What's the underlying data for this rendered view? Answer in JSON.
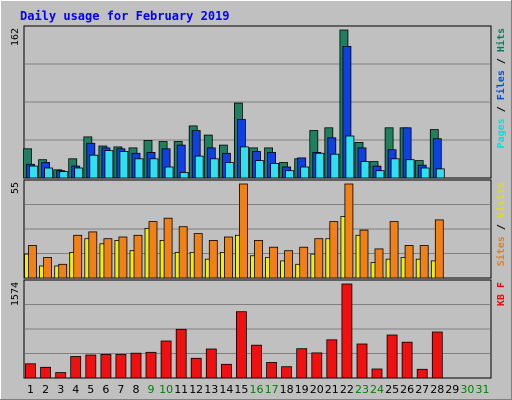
{
  "chart_data": {
    "type": "bar",
    "title": "Daily usage for February 2019",
    "categories": [
      "1",
      "2",
      "3",
      "4",
      "5",
      "6",
      "7",
      "8",
      "9",
      "10",
      "11",
      "12",
      "13",
      "14",
      "15",
      "16",
      "17",
      "18",
      "19",
      "20",
      "21",
      "22",
      "23",
      "24",
      "25",
      "26",
      "27",
      "28",
      "29",
      "30",
      "31"
    ],
    "weekend_days": [
      "9",
      "10",
      "16",
      "17",
      "23",
      "24",
      "30",
      "31"
    ],
    "panels": [
      {
        "id": "top",
        "max_label": "162",
        "ymax": 162,
        "legend": [
          {
            "text": "Pages",
            "color": "#00e0e0"
          },
          {
            "text": " / ",
            "color": "#000000"
          },
          {
            "text": "Files",
            "color": "#0050e0"
          },
          {
            "text": " / ",
            "color": "#000000"
          },
          {
            "text": "Hits",
            "color": "#008060"
          }
        ],
        "series": [
          {
            "name": "Hits",
            "color": "#1e8060",
            "values": [
              32,
              20,
              9,
              21,
              45,
              35,
              34,
              33,
              41,
              40,
              40,
              57,
              47,
              36,
              82,
              33,
              33,
              17,
              21,
              52,
              55,
              162,
              39,
              18,
              55,
              55,
              19,
              53,
              0,
              0,
              0
            ]
          },
          {
            "name": "Files",
            "color": "#1040e0",
            "values": [
              15,
              17,
              8,
              13,
              38,
              33,
              32,
              27,
              28,
              32,
              36,
              52,
              33,
              27,
              64,
              29,
              28,
              12,
              22,
              28,
              44,
              144,
              33,
              13,
              31,
              55,
              14,
              43,
              0,
              0,
              0
            ]
          },
          {
            "name": "Pages",
            "color": "#30e0f0",
            "values": [
              13,
              11,
              7,
              11,
              25,
              30,
              29,
              21,
              21,
              12,
              6,
              24,
              21,
              17,
              34,
              19,
              16,
              8,
              12,
              27,
              26,
              46,
              18,
              8,
              21,
              20,
              11,
              10,
              0,
              0,
              0
            ]
          }
        ]
      },
      {
        "id": "middle",
        "max_label": "55",
        "ymax": 55,
        "legend": [
          {
            "text": "Sites",
            "color": "#e08020"
          },
          {
            "text": " / ",
            "color": "#000000"
          },
          {
            "text": "Visits",
            "color": "#e0e000"
          }
        ],
        "series": [
          {
            "name": "Visits",
            "color": "#f0f000",
            "values": [
              14,
              7,
              7,
              15,
              23,
              20,
              22,
              16,
              29,
              22,
              15,
              15,
              11,
              15,
              25,
              13,
              12,
              10,
              8,
              14,
              23,
              36,
              25,
              9,
              11,
              12,
              11,
              10,
              0,
              0,
              0
            ]
          },
          {
            "name": "Sites",
            "color": "#f08018",
            "values": [
              19,
              12,
              8,
              25,
              27,
              23,
              24,
              25,
              33,
              35,
              30,
              26,
              22,
              24,
              55,
              22,
              18,
              16,
              18,
              23,
              33,
              55,
              28,
              17,
              33,
              19,
              19,
              34,
              0,
              0,
              0
            ]
          }
        ]
      },
      {
        "id": "bottom",
        "max_label": "1574",
        "ymax": 1574,
        "legend": [
          {
            "text": "KB F",
            "color": "#ff0000"
          }
        ],
        "series": [
          {
            "name": "KB F",
            "color": "#f01010",
            "values": [
              238,
              180,
              90,
              360,
              385,
              395,
              395,
              415,
              430,
              620,
              815,
              330,
              485,
              230,
              1110,
              550,
              260,
              190,
              490,
              420,
              640,
              1574,
              570,
              150,
              720,
              600,
              145,
              770,
              0,
              0,
              0
            ]
          }
        ]
      }
    ]
  }
}
